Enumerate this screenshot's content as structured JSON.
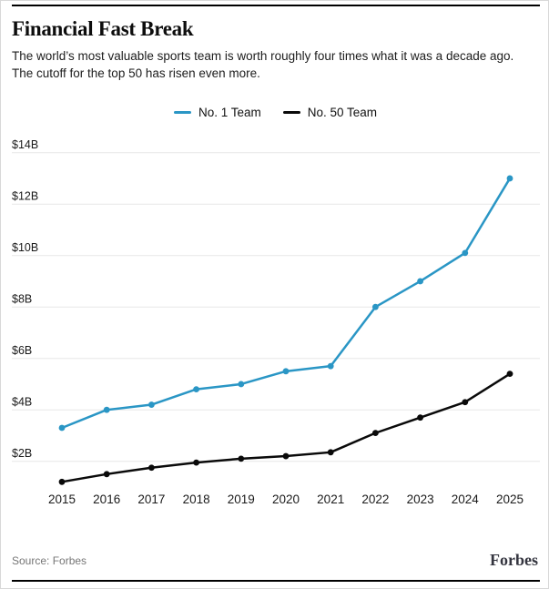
{
  "header": {
    "title": "Financial Fast Break",
    "subtitle_line1": "The world’s most valuable sports team is worth roughly four times what it was a decade ago.",
    "subtitle_line2": "The cutoff for the top 50 has risen even more."
  },
  "legend": {
    "items": [
      {
        "label": "No. 1 Team",
        "color": "#2a96c5"
      },
      {
        "label": "No. 50 Team",
        "color": "#0a0a0a"
      }
    ],
    "position": "top-center"
  },
  "chart_data": {
    "type": "line",
    "title": "Financial Fast Break",
    "x": [
      2015,
      2016,
      2017,
      2018,
      2019,
      2020,
      2021,
      2022,
      2023,
      2024,
      2025
    ],
    "series": [
      {
        "name": "No. 1 Team",
        "color": "#2a96c5",
        "values": [
          3.3,
          4.0,
          4.2,
          4.8,
          5.0,
          5.5,
          5.7,
          8.0,
          9.0,
          10.1,
          13.0
        ]
      },
      {
        "name": "No. 50 Team",
        "color": "#0a0a0a",
        "values": [
          1.2,
          1.5,
          1.75,
          1.95,
          2.1,
          2.2,
          2.35,
          3.1,
          3.7,
          4.3,
          5.4
        ]
      }
    ],
    "xlabel": "",
    "ylabel": "",
    "y_ticks": [
      {
        "value": 2,
        "label": "$2B"
      },
      {
        "value": 4,
        "label": "$4B"
      },
      {
        "value": 6,
        "label": "$6B"
      },
      {
        "value": 8,
        "label": "$8B"
      },
      {
        "value": 10,
        "label": "$10B"
      },
      {
        "value": 12,
        "label": "$12B"
      },
      {
        "value": 14,
        "label": "$14B"
      }
    ],
    "ylim": [
      1,
      14.5
    ],
    "grid": true,
    "gridline_color": "#e7e7e7",
    "marker": "circle"
  },
  "footer": {
    "source": "Source: Forbes",
    "brand": "Forbes"
  }
}
